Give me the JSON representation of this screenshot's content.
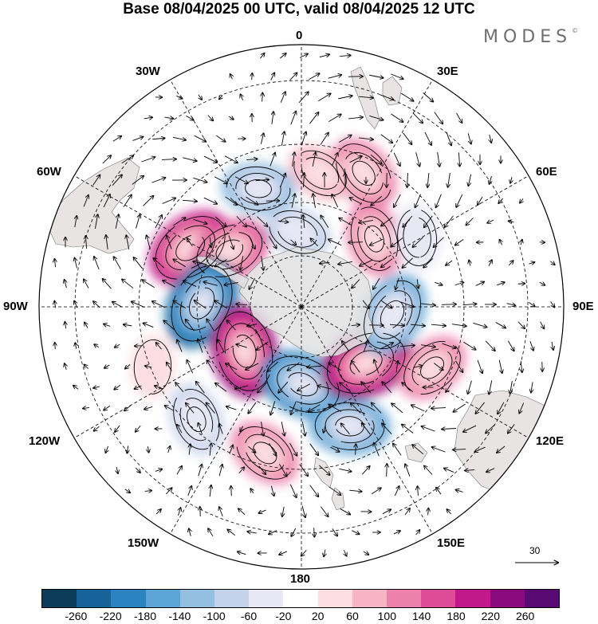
{
  "title": "Base 08/04/2025 00 UTC, valid 08/04/2025 12 UTC",
  "brand": "MODES",
  "brand_mark": "©",
  "lon_labels": {
    "top": "0",
    "top_right": "30E",
    "right_upper": "60E",
    "right": "90E",
    "right_lower": "120E",
    "bottom_right": "150E",
    "bottom": "180",
    "bottom_left": "150W",
    "left_lower": "120W",
    "left": "90W",
    "left_upper": "60W",
    "top_left": "30W"
  },
  "wind_reference": "30",
  "colorbar": {
    "colors": [
      "#0c3c5a",
      "#16639a",
      "#2b84bf",
      "#5da5d6",
      "#93bfe0",
      "#c4d2ea",
      "#e8e8f5",
      "#ffffff",
      "#fbdde2",
      "#f6b4c4",
      "#ec82ab",
      "#de4c98",
      "#c1188a",
      "#8b0a7c",
      "#5a0a73"
    ],
    "tick_labels": [
      "-260",
      "-220",
      "-180",
      "-140",
      "-100",
      "-60",
      "-20",
      "20",
      "60",
      "100",
      "140",
      "180",
      "220",
      "260"
    ]
  },
  "anomaly_centers": [
    {
      "lon": -20,
      "lat": -43,
      "value": -110
    },
    {
      "lon": -62,
      "lat": -43,
      "value": 210
    },
    {
      "lon": -52,
      "lat": -55,
      "value": 150
    },
    {
      "lon": -88,
      "lat": -52,
      "value": -230
    },
    {
      "lon": -128,
      "lat": -62,
      "value": 230
    },
    {
      "lon": -166,
      "lat": -35,
      "value": 110
    },
    {
      "lon": 179,
      "lat": -60,
      "value": -200
    },
    {
      "lon": 158,
      "lat": -42,
      "value": -150
    },
    {
      "lon": 131,
      "lat": -57,
      "value": 240
    },
    {
      "lon": 115,
      "lat": -37,
      "value": 110
    },
    {
      "lon": 95,
      "lat": -55,
      "value": -180
    },
    {
      "lon": 47,
      "lat": -52,
      "value": 120
    },
    {
      "lon": 25,
      "lat": -36,
      "value": 130
    },
    {
      "lon": 8,
      "lat": -40,
      "value": 60
    },
    {
      "lon": -3,
      "lat": -61,
      "value": -70
    },
    {
      "lon": 59,
      "lat": -40,
      "value": -60
    },
    {
      "lon": -137,
      "lat": -34,
      "value": -100
    },
    {
      "lon": -112,
      "lat": -32,
      "value": 40
    }
  ]
}
